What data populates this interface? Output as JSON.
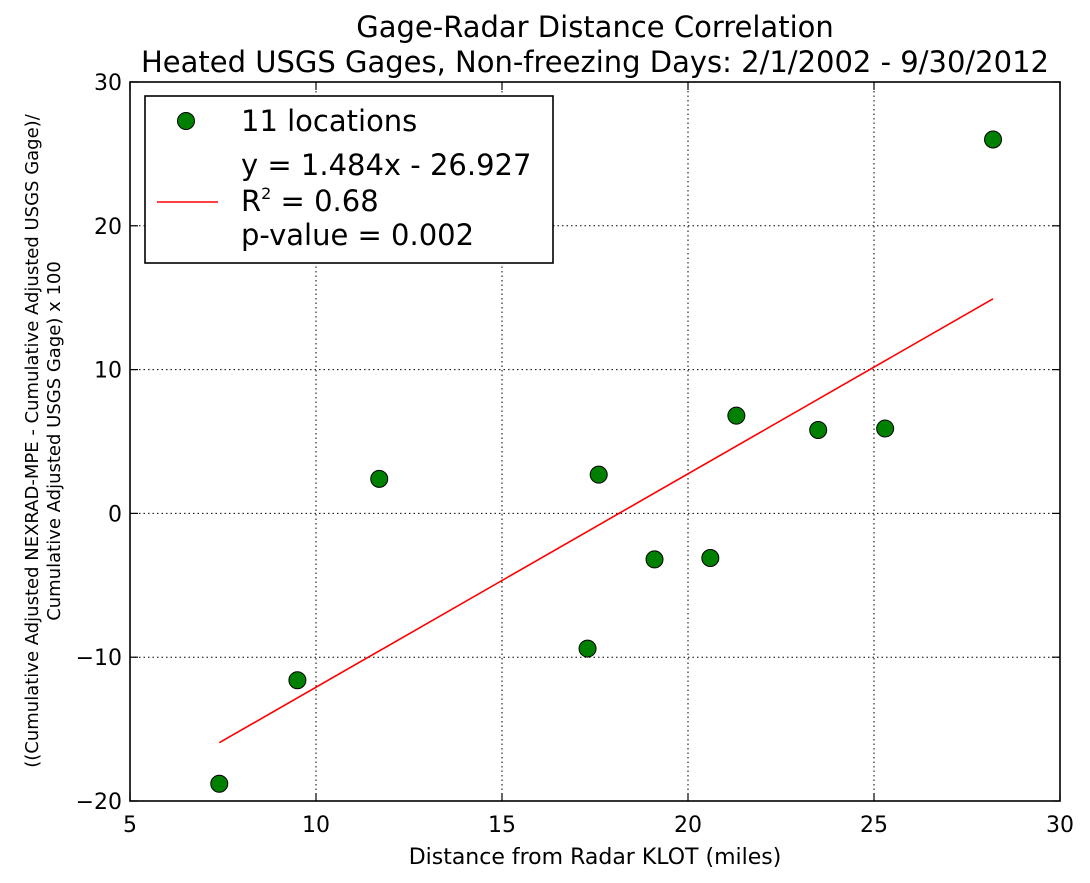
{
  "chart_data": {
    "type": "scatter",
    "title": "Gage-Radar Distance Correlation",
    "subtitle": "Heated USGS Gages, Non-freezing Days: 2/1/2002 - 9/30/2012",
    "xlabel": "Distance from Radar KLOT (miles)",
    "ylabel_line1": "((Cumulative Adjusted NEXRAD-MPE - Cumulative Adjusted USGS Gage)/",
    "ylabel_line2": "Cumulative Adjusted USGS Gage) x 100",
    "xlim": [
      5,
      30
    ],
    "ylim": [
      -20,
      30
    ],
    "xticks": [
      5,
      10,
      15,
      20,
      25,
      30
    ],
    "yticks": [
      -20,
      -10,
      0,
      10,
      20,
      30
    ],
    "xtick_labels": [
      "5",
      "10",
      "15",
      "20",
      "25",
      "30"
    ],
    "ytick_labels": [
      "−20",
      "−10",
      "0",
      "10",
      "20",
      "30"
    ],
    "grid": true,
    "legend_position": "top-left",
    "series": [
      {
        "name": "11 locations",
        "kind": "scatter",
        "color": "#008000",
        "points": [
          {
            "x": 7.4,
            "y": -18.8
          },
          {
            "x": 9.5,
            "y": -11.6
          },
          {
            "x": 11.7,
            "y": 2.4
          },
          {
            "x": 17.3,
            "y": -9.4
          },
          {
            "x": 17.6,
            "y": 2.7
          },
          {
            "x": 19.1,
            "y": -3.2
          },
          {
            "x": 20.6,
            "y": -3.1
          },
          {
            "x": 21.3,
            "y": 6.8
          },
          {
            "x": 23.5,
            "y": 5.8
          },
          {
            "x": 25.3,
            "y": 5.9
          },
          {
            "x": 28.2,
            "y": 26.0
          }
        ]
      },
      {
        "kind": "line",
        "color": "#ff0000",
        "slope": 1.484,
        "intercept": -26.927,
        "x_range": [
          7.4,
          28.2
        ]
      }
    ],
    "legend": {
      "scatter_label": "11 locations",
      "fit_label_equation": "y = 1.484x - 26.927",
      "fit_label_r_prefix": "R",
      "fit_label_r_sup": "2",
      "fit_label_r_suffix": " = 0.68",
      "fit_label_p": "p-value = 0.002"
    }
  }
}
